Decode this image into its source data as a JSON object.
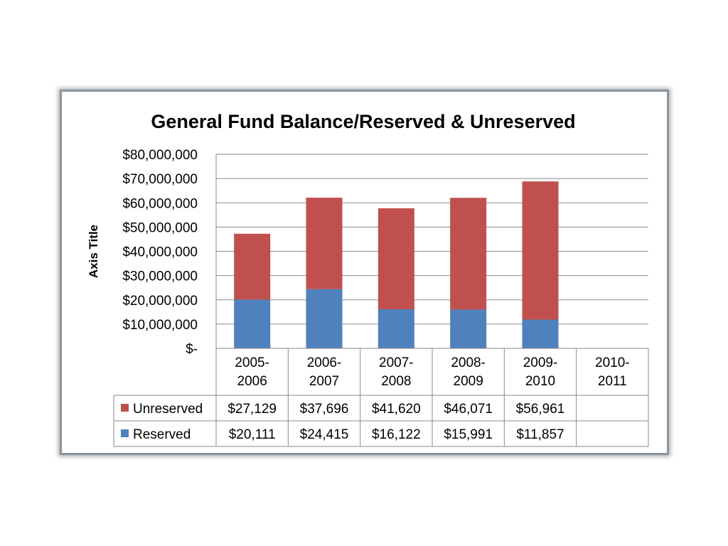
{
  "chart_data": {
    "type": "bar",
    "stacked": true,
    "title": "General Fund Balance/Reserved & Unreserved",
    "ylabel": "Axis Title",
    "ylim": [
      0,
      80000000
    ],
    "ytick_labels": [
      "$-",
      "$10,000,000",
      "$20,000,000",
      "$30,000,000",
      "$40,000,000",
      "$50,000,000",
      "$60,000,000",
      "$70,000,000",
      "$80,000,000"
    ],
    "categories": [
      [
        "2005-",
        "2006"
      ],
      [
        "2006-",
        "2007"
      ],
      [
        "2007-",
        "2008"
      ],
      [
        "2008-",
        "2009"
      ],
      [
        "2009-",
        "2010"
      ],
      [
        "2010-",
        "2011"
      ]
    ],
    "grid": true,
    "legend": "data table",
    "series": [
      {
        "name": "Unreserved",
        "color": "#c0504d",
        "values": [
          27129000,
          37696000,
          41620000,
          46071000,
          56961000,
          null
        ],
        "table_labels": [
          "$27,129",
          "$37,696",
          "$41,620",
          "$46,071",
          "$56,961",
          ""
        ]
      },
      {
        "name": "Reserved",
        "color": "#4f81bd",
        "values": [
          20111000,
          24415000,
          16122000,
          15991000,
          11857000,
          null
        ],
        "table_labels": [
          "$20,111",
          "$24,415",
          "$16,122",
          "$15,991",
          "$11,857",
          ""
        ]
      }
    ]
  }
}
